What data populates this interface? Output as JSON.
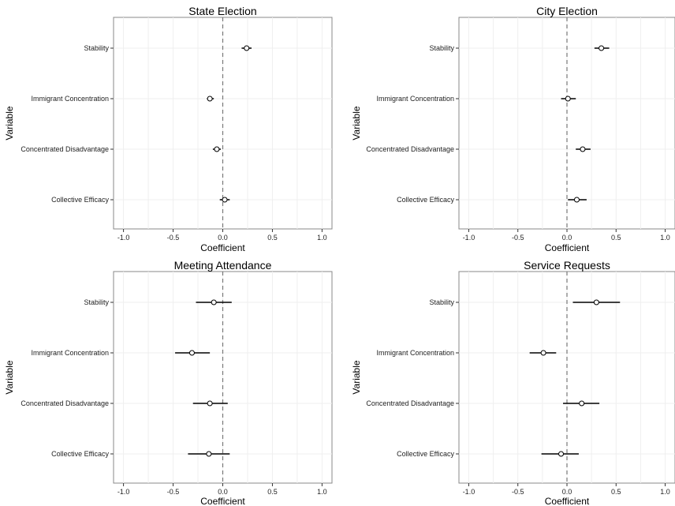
{
  "chart_data": [
    {
      "type": "scatter",
      "subtype": "coefficient-plot",
      "title": "State Election",
      "xlabel": "Coefficient",
      "ylabel": "Variable",
      "xlim": [
        -1.1,
        1.1
      ],
      "xticks": [
        -1.0,
        -0.5,
        0.0,
        0.5,
        1.0
      ],
      "xtick_labels": [
        "-1.0",
        "-0.5",
        "0.0",
        "0.5",
        "1.0"
      ],
      "reference_line": 0,
      "grid": true,
      "categories": [
        "Stability",
        "Immigrant Concentration",
        "Concentrated Disadvantage",
        "Collective Efficacy"
      ],
      "estimates": [
        0.24,
        -0.13,
        -0.06,
        0.02
      ],
      "ci_low": [
        0.19,
        -0.16,
        -0.1,
        -0.03
      ],
      "ci_high": [
        0.29,
        -0.09,
        -0.02,
        0.07
      ]
    },
    {
      "type": "scatter",
      "subtype": "coefficient-plot",
      "title": "City Election",
      "xlabel": "Coefficient",
      "ylabel": "Variable",
      "xlim": [
        -1.1,
        1.1
      ],
      "xticks": [
        -1.0,
        -0.5,
        0.0,
        0.5,
        1.0
      ],
      "xtick_labels": [
        "-1.0",
        "-0.5",
        "0.0",
        "0.5",
        "1.0"
      ],
      "reference_line": 0,
      "grid": true,
      "categories": [
        "Stability",
        "Immigrant Concentration",
        "Concentrated Disadvantage",
        "Collective Efficacy"
      ],
      "estimates": [
        0.35,
        0.01,
        0.16,
        0.1
      ],
      "ci_low": [
        0.28,
        -0.06,
        0.09,
        0.01
      ],
      "ci_high": [
        0.43,
        0.09,
        0.24,
        0.2
      ]
    },
    {
      "type": "scatter",
      "subtype": "coefficient-plot",
      "title": "Meeting Attendance",
      "xlabel": "Coefficient",
      "ylabel": "Variable",
      "xlim": [
        -1.1,
        1.1
      ],
      "xticks": [
        -1.0,
        -0.5,
        0.0,
        0.5,
        1.0
      ],
      "xtick_labels": [
        "-1.0",
        "-0.5",
        "0.0",
        "0.5",
        "1.0"
      ],
      "reference_line": 0,
      "grid": true,
      "categories": [
        "Stability",
        "Immigrant Concentration",
        "Concentrated Disadvantage",
        "Collective Efficacy"
      ],
      "estimates": [
        -0.09,
        -0.31,
        -0.13,
        -0.14
      ],
      "ci_low": [
        -0.27,
        -0.48,
        -0.3,
        -0.35
      ],
      "ci_high": [
        0.09,
        -0.13,
        0.05,
        0.07
      ]
    },
    {
      "type": "scatter",
      "subtype": "coefficient-plot",
      "title": "Service Requests",
      "xlabel": "Coefficient",
      "ylabel": "Variable",
      "xlim": [
        -1.1,
        1.1
      ],
      "xticks": [
        -1.0,
        -0.5,
        0.0,
        0.5,
        1.0
      ],
      "xtick_labels": [
        "-1.0",
        "-0.5",
        "0.0",
        "0.5",
        "1.0"
      ],
      "reference_line": 0,
      "grid": true,
      "categories": [
        "Stability",
        "Immigrant Concentration",
        "Concentrated Disadvantage",
        "Collective Efficacy"
      ],
      "estimates": [
        0.3,
        -0.24,
        0.15,
        -0.06
      ],
      "ci_low": [
        0.06,
        -0.38,
        -0.04,
        -0.26
      ],
      "ci_high": [
        0.54,
        -0.11,
        0.33,
        0.12
      ]
    }
  ],
  "colors": {
    "panel_border": "#888888",
    "grid": "#efefef",
    "reference_line": "#777777",
    "interval": "#000000",
    "point_fill": "#ffffff",
    "point_stroke": "#000000"
  }
}
